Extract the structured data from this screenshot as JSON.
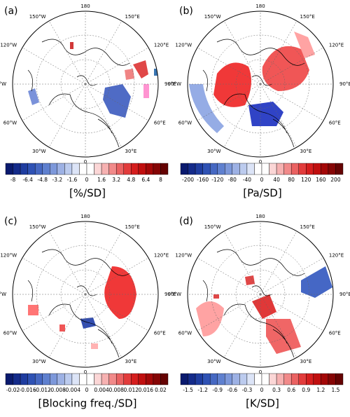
{
  "panels": [
    {
      "label": "(a)",
      "unit": "[%/SD]",
      "colorbar_labels": [
        "-8",
        "-6.4",
        "-4.8",
        "-3.2",
        "-1.6",
        "0",
        "1.6",
        "3.2",
        "4.8",
        "6.4",
        "8"
      ]
    },
    {
      "label": "(b)",
      "unit": "[Pa/SD]",
      "colorbar_labels": [
        "-200",
        "-160",
        "-120",
        "-80",
        "-40",
        "0",
        "40",
        "80",
        "120",
        "160",
        "200"
      ]
    },
    {
      "label": "(c)",
      "unit": "[Blocking freq./SD]",
      "colorbar_labels": [
        "-0.02",
        "-0.016",
        "-0.012",
        "-0.008",
        "-0.004",
        "0",
        "0.004",
        "0.008",
        "0.012",
        "0.016",
        "0.02"
      ]
    },
    {
      "label": "(d)",
      "unit": "[K/SD]",
      "colorbar_labels": [
        "-1.5",
        "-1.2",
        "-0.9",
        "-0.6",
        "-0.3",
        "0",
        "0.3",
        "0.6",
        "0.9",
        "1.2",
        "1.5"
      ]
    }
  ],
  "longitudes": [
    "0",
    "30°E",
    "60°E",
    "90°E",
    "120°E",
    "150°E",
    "180",
    "150°W",
    "120°W",
    "90°W",
    "60°W",
    "30°W"
  ]
}
